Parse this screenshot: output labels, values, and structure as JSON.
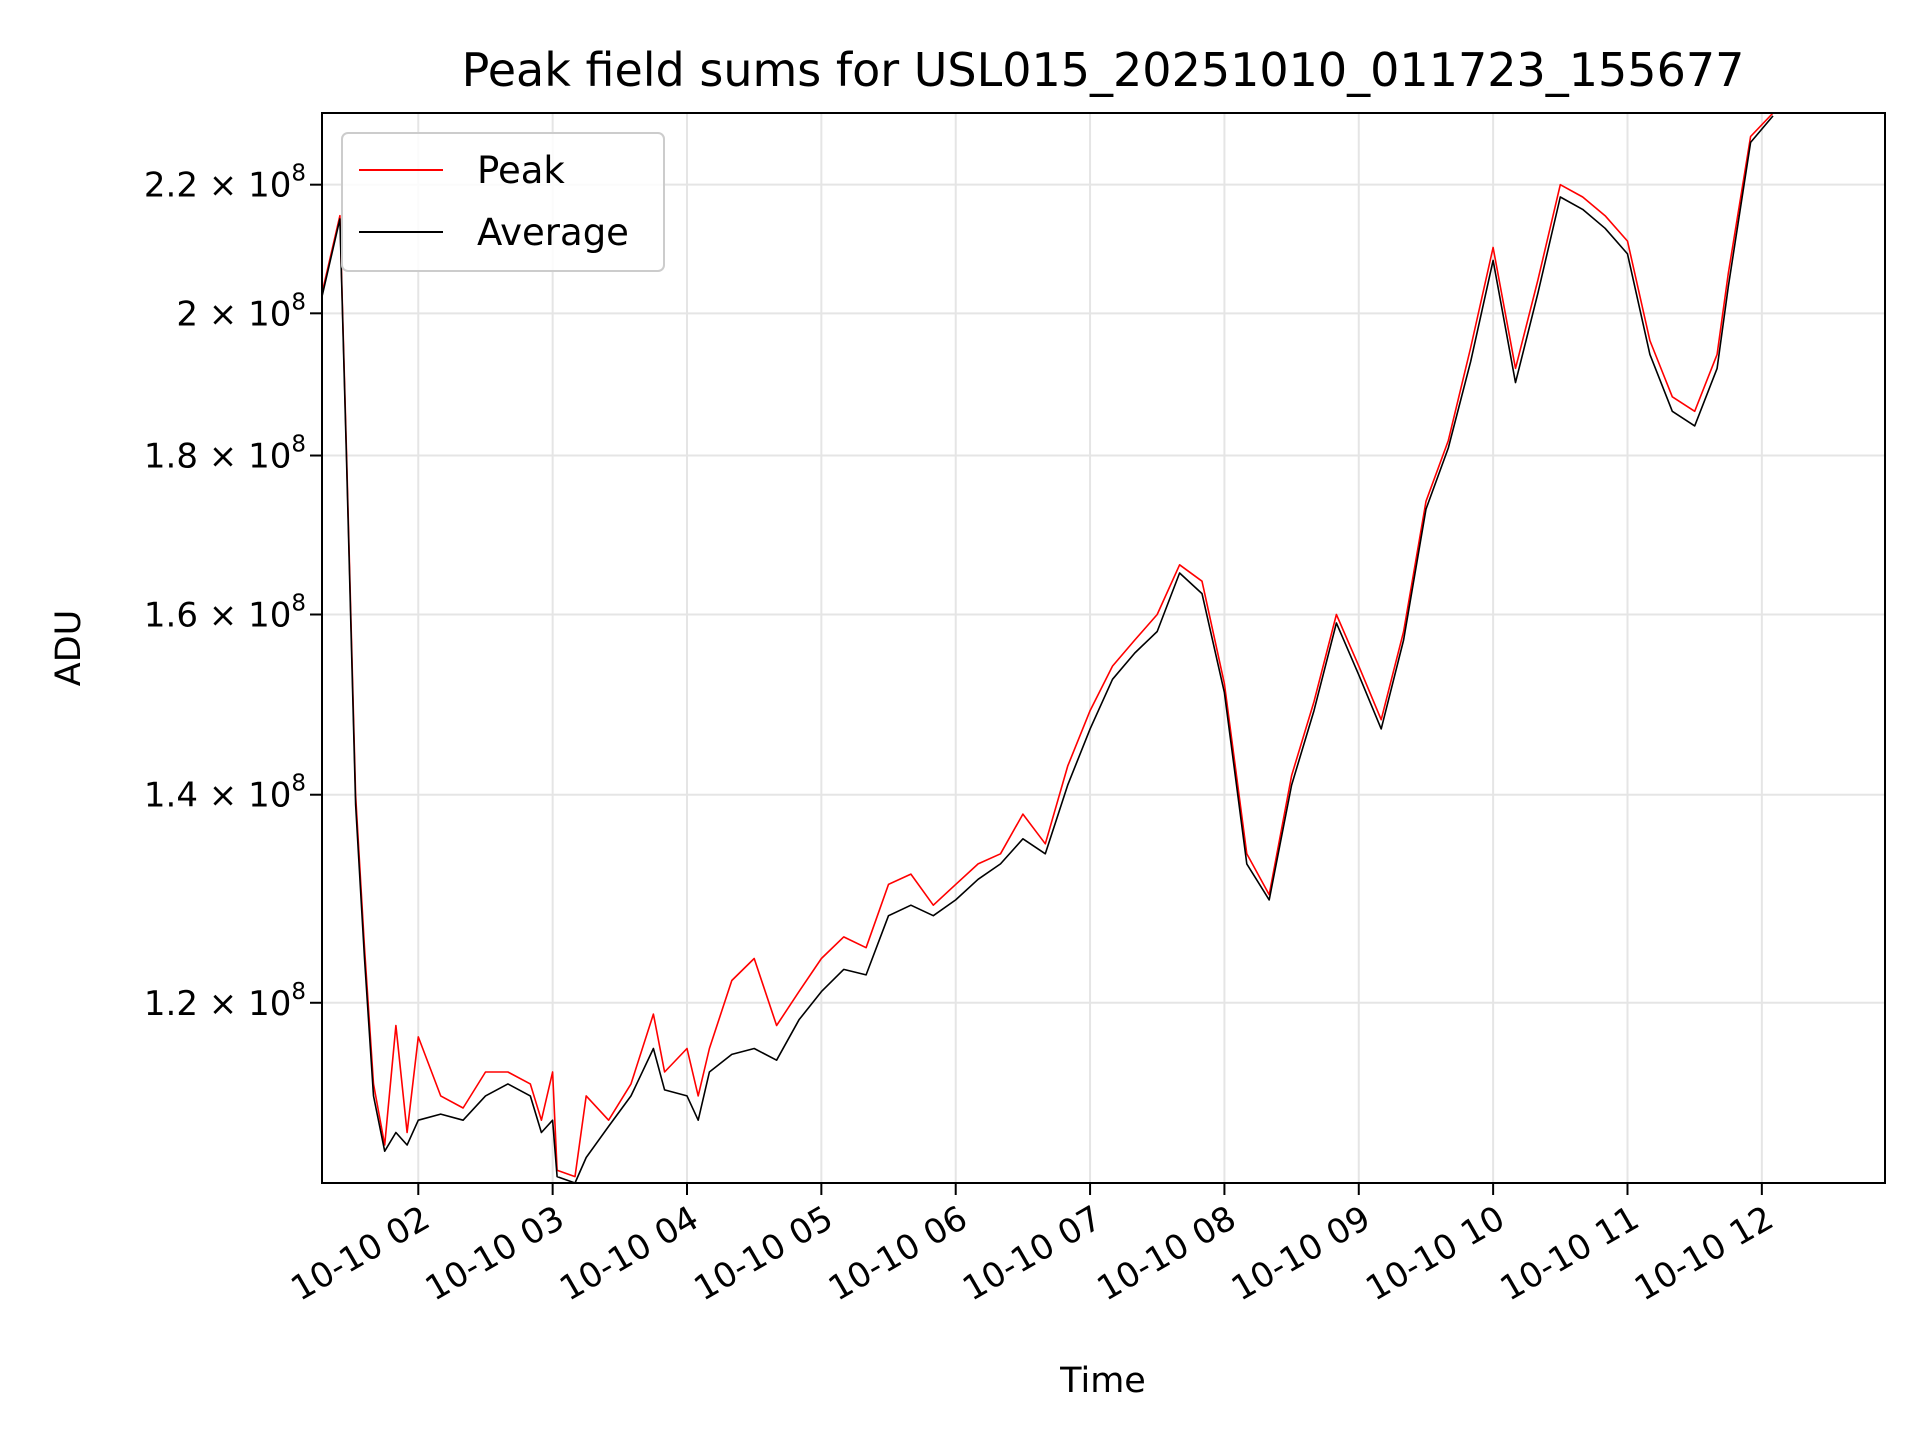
{
  "chart_data": {
    "type": "line",
    "title": "Peak field sums for USL015_20251010_011723_155677",
    "xlabel": "Time",
    "ylabel": "ADU",
    "y_scale": "log",
    "ylim": [
      105000000,
      232000000
    ],
    "xlim": [
      "2025-10-10 01:17",
      "2025-10-10 12:55"
    ],
    "grid": true,
    "legend_position": "upper-left",
    "x_ticks": [
      {
        "value": "2025-10-10 02:00",
        "label": "10-10 02"
      },
      {
        "value": "2025-10-10 03:00",
        "label": "10-10 03"
      },
      {
        "value": "2025-10-10 04:00",
        "label": "10-10 04"
      },
      {
        "value": "2025-10-10 05:00",
        "label": "10-10 05"
      },
      {
        "value": "2025-10-10 06:00",
        "label": "10-10 06"
      },
      {
        "value": "2025-10-10 07:00",
        "label": "10-10 07"
      },
      {
        "value": "2025-10-10 08:00",
        "label": "10-10 08"
      },
      {
        "value": "2025-10-10 09:00",
        "label": "10-10 09"
      },
      {
        "value": "2025-10-10 10:00",
        "label": "10-10 10"
      },
      {
        "value": "2025-10-10 11:00",
        "label": "10-10 11"
      },
      {
        "value": "2025-10-10 12:00",
        "label": "10-10 12"
      }
    ],
    "y_ticks": [
      {
        "value": 120000000,
        "mantissa": "1.2",
        "exp": "8"
      },
      {
        "value": 140000000,
        "mantissa": "1.4",
        "exp": "8"
      },
      {
        "value": 160000000,
        "mantissa": "1.6",
        "exp": "8"
      },
      {
        "value": 180000000,
        "mantissa": "1.8",
        "exp": "8"
      },
      {
        "value": 200000000,
        "mantissa": "2",
        "exp": "8"
      },
      {
        "value": 220000000,
        "mantissa": "2.2",
        "exp": "8"
      }
    ],
    "series": [
      {
        "name": "Peak",
        "color": "#ff0000",
        "points": [
          [
            "2025-10-10 01:17",
            203000000
          ],
          [
            "2025-10-10 01:25",
            215000000
          ],
          [
            "2025-10-10 01:28",
            180000000
          ],
          [
            "2025-10-10 01:32",
            140000000
          ],
          [
            "2025-10-10 01:36",
            125000000
          ],
          [
            "2025-10-10 01:40",
            113000000
          ],
          [
            "2025-10-10 01:45",
            108000000
          ],
          [
            "2025-10-10 01:50",
            118000000
          ],
          [
            "2025-10-10 01:55",
            109000000
          ],
          [
            "2025-10-10 02:00",
            117000000
          ],
          [
            "2025-10-10 02:10",
            112000000
          ],
          [
            "2025-10-10 02:20",
            111000000
          ],
          [
            "2025-10-10 02:30",
            114000000
          ],
          [
            "2025-10-10 02:40",
            114000000
          ],
          [
            "2025-10-10 02:50",
            113000000
          ],
          [
            "2025-10-10 02:55",
            110000000
          ],
          [
            "2025-10-10 03:00",
            114000000
          ],
          [
            "2025-10-10 03:02",
            106000000
          ],
          [
            "2025-10-10 03:10",
            105500000
          ],
          [
            "2025-10-10 03:15",
            112000000
          ],
          [
            "2025-10-10 03:25",
            110000000
          ],
          [
            "2025-10-10 03:35",
            113000000
          ],
          [
            "2025-10-10 03:45",
            119000000
          ],
          [
            "2025-10-10 03:50",
            114000000
          ],
          [
            "2025-10-10 04:00",
            116000000
          ],
          [
            "2025-10-10 04:05",
            112000000
          ],
          [
            "2025-10-10 04:10",
            116000000
          ],
          [
            "2025-10-10 04:20",
            122000000
          ],
          [
            "2025-10-10 04:30",
            124000000
          ],
          [
            "2025-10-10 04:40",
            118000000
          ],
          [
            "2025-10-10 04:50",
            121000000
          ],
          [
            "2025-10-10 05:00",
            124000000
          ],
          [
            "2025-10-10 05:10",
            126000000
          ],
          [
            "2025-10-10 05:20",
            125000000
          ],
          [
            "2025-10-10 05:30",
            131000000
          ],
          [
            "2025-10-10 05:40",
            132000000
          ],
          [
            "2025-10-10 05:50",
            129000000
          ],
          [
            "2025-10-10 06:00",
            131000000
          ],
          [
            "2025-10-10 06:10",
            133000000
          ],
          [
            "2025-10-10 06:20",
            134000000
          ],
          [
            "2025-10-10 06:30",
            138000000
          ],
          [
            "2025-10-10 06:40",
            135000000
          ],
          [
            "2025-10-10 06:50",
            143000000
          ],
          [
            "2025-10-10 07:00",
            149000000
          ],
          [
            "2025-10-10 07:10",
            154000000
          ],
          [
            "2025-10-10 07:20",
            157000000
          ],
          [
            "2025-10-10 07:30",
            160000000
          ],
          [
            "2025-10-10 07:40",
            166000000
          ],
          [
            "2025-10-10 07:50",
            164000000
          ],
          [
            "2025-10-10 08:00",
            152000000
          ],
          [
            "2025-10-10 08:10",
            134000000
          ],
          [
            "2025-10-10 08:20",
            130000000
          ],
          [
            "2025-10-10 08:30",
            142000000
          ],
          [
            "2025-10-10 08:40",
            150000000
          ],
          [
            "2025-10-10 08:50",
            160000000
          ],
          [
            "2025-10-10 09:00",
            154000000
          ],
          [
            "2025-10-10 09:10",
            148000000
          ],
          [
            "2025-10-10 09:20",
            158000000
          ],
          [
            "2025-10-10 09:30",
            174000000
          ],
          [
            "2025-10-10 09:40",
            182000000
          ],
          [
            "2025-10-10 09:50",
            195000000
          ],
          [
            "2025-10-10 10:00",
            210000000
          ],
          [
            "2025-10-10 10:10",
            192000000
          ],
          [
            "2025-10-10 10:20",
            205000000
          ],
          [
            "2025-10-10 10:30",
            220000000
          ],
          [
            "2025-10-10 10:40",
            218000000
          ],
          [
            "2025-10-10 10:50",
            215000000
          ],
          [
            "2025-10-10 11:00",
            211000000
          ],
          [
            "2025-10-10 11:10",
            196000000
          ],
          [
            "2025-10-10 11:20",
            188000000
          ],
          [
            "2025-10-10 11:30",
            186000000
          ],
          [
            "2025-10-10 11:40",
            194000000
          ],
          [
            "2025-10-10 11:45",
            206000000
          ],
          [
            "2025-10-10 11:55",
            228000000
          ],
          [
            "2025-10-10 12:05",
            232000000
          ]
        ]
      },
      {
        "name": "Average",
        "color": "#000000",
        "points": [
          [
            "2025-10-10 01:17",
            202500000
          ],
          [
            "2025-10-10 01:25",
            214500000
          ],
          [
            "2025-10-10 01:28",
            179000000
          ],
          [
            "2025-10-10 01:32",
            139000000
          ],
          [
            "2025-10-10 01:36",
            124000000
          ],
          [
            "2025-10-10 01:40",
            112000000
          ],
          [
            "2025-10-10 01:45",
            107500000
          ],
          [
            "2025-10-10 01:50",
            109000000
          ],
          [
            "2025-10-10 01:55",
            108000000
          ],
          [
            "2025-10-10 02:00",
            110000000
          ],
          [
            "2025-10-10 02:10",
            110500000
          ],
          [
            "2025-10-10 02:20",
            110000000
          ],
          [
            "2025-10-10 02:30",
            112000000
          ],
          [
            "2025-10-10 02:40",
            113000000
          ],
          [
            "2025-10-10 02:50",
            112000000
          ],
          [
            "2025-10-10 02:55",
            109000000
          ],
          [
            "2025-10-10 03:00",
            110000000
          ],
          [
            "2025-10-10 03:02",
            105500000
          ],
          [
            "2025-10-10 03:10",
            105000000
          ],
          [
            "2025-10-10 03:15",
            107000000
          ],
          [
            "2025-10-10 03:25",
            109500000
          ],
          [
            "2025-10-10 03:35",
            112000000
          ],
          [
            "2025-10-10 03:45",
            116000000
          ],
          [
            "2025-10-10 03:50",
            112500000
          ],
          [
            "2025-10-10 04:00",
            112000000
          ],
          [
            "2025-10-10 04:05",
            110000000
          ],
          [
            "2025-10-10 04:10",
            114000000
          ],
          [
            "2025-10-10 04:20",
            115500000
          ],
          [
            "2025-10-10 04:30",
            116000000
          ],
          [
            "2025-10-10 04:40",
            115000000
          ],
          [
            "2025-10-10 04:50",
            118500000
          ],
          [
            "2025-10-10 05:00",
            121000000
          ],
          [
            "2025-10-10 05:10",
            123000000
          ],
          [
            "2025-10-10 05:20",
            122500000
          ],
          [
            "2025-10-10 05:30",
            128000000
          ],
          [
            "2025-10-10 05:40",
            129000000
          ],
          [
            "2025-10-10 05:50",
            128000000
          ],
          [
            "2025-10-10 06:00",
            129500000
          ],
          [
            "2025-10-10 06:10",
            131500000
          ],
          [
            "2025-10-10 06:20",
            133000000
          ],
          [
            "2025-10-10 06:30",
            135500000
          ],
          [
            "2025-10-10 06:40",
            134000000
          ],
          [
            "2025-10-10 06:50",
            141000000
          ],
          [
            "2025-10-10 07:00",
            147000000
          ],
          [
            "2025-10-10 07:10",
            152500000
          ],
          [
            "2025-10-10 07:20",
            155500000
          ],
          [
            "2025-10-10 07:30",
            158000000
          ],
          [
            "2025-10-10 07:40",
            165000000
          ],
          [
            "2025-10-10 07:50",
            162500000
          ],
          [
            "2025-10-10 08:00",
            151000000
          ],
          [
            "2025-10-10 08:10",
            133000000
          ],
          [
            "2025-10-10 08:20",
            129500000
          ],
          [
            "2025-10-10 08:30",
            141000000
          ],
          [
            "2025-10-10 08:40",
            149000000
          ],
          [
            "2025-10-10 08:50",
            159000000
          ],
          [
            "2025-10-10 09:00",
            153000000
          ],
          [
            "2025-10-10 09:10",
            147000000
          ],
          [
            "2025-10-10 09:20",
            157000000
          ],
          [
            "2025-10-10 09:30",
            173000000
          ],
          [
            "2025-10-10 09:40",
            181000000
          ],
          [
            "2025-10-10 09:50",
            193000000
          ],
          [
            "2025-10-10 10:00",
            208000000
          ],
          [
            "2025-10-10 10:10",
            190000000
          ],
          [
            "2025-10-10 10:20",
            203000000
          ],
          [
            "2025-10-10 10:30",
            218000000
          ],
          [
            "2025-10-10 10:40",
            216000000
          ],
          [
            "2025-10-10 10:50",
            213000000
          ],
          [
            "2025-10-10 11:00",
            209000000
          ],
          [
            "2025-10-10 11:10",
            194000000
          ],
          [
            "2025-10-10 11:20",
            186000000
          ],
          [
            "2025-10-10 11:30",
            184000000
          ],
          [
            "2025-10-10 11:40",
            192000000
          ],
          [
            "2025-10-10 11:45",
            204000000
          ],
          [
            "2025-10-10 11:55",
            227000000
          ],
          [
            "2025-10-10 12:05",
            231500000
          ]
        ]
      }
    ]
  }
}
